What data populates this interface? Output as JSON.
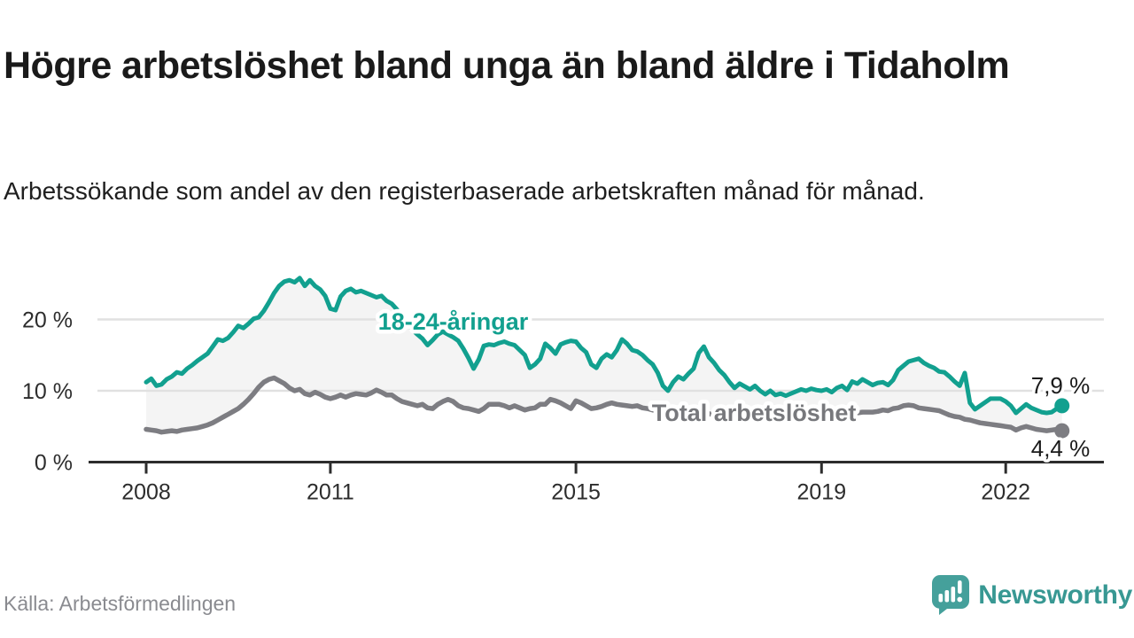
{
  "chart_data": {
    "type": "line",
    "title": "Högre arbetslöshet bland unga än bland äldre i Tidaholm",
    "subtitle": "Arbetssökande som andel av den registerbaserade arbetskraften månad för månad.",
    "unit": "%",
    "x_start": "2008-01",
    "x_end": "2022-12",
    "x_interval": "monthly",
    "ylim": [
      0,
      27
    ],
    "yticks": [
      0,
      10,
      20
    ],
    "ytick_labels": [
      "0 %",
      "10 %",
      "20 %"
    ],
    "xticks": [
      2008,
      2011,
      2015,
      2019,
      2022
    ],
    "grid": true,
    "band_fill": "#f4f4f4",
    "grid_color": "#e1e1e1",
    "axis_color": "#2d2d2d",
    "tick_label_color": "#2d2d2d",
    "end_label_color": "#1b1b1b",
    "series": [
      {
        "name": "18-24-åringar",
        "color": "#12a08f",
        "end_label": "7,9 %",
        "end_value": 7.9,
        "values": [
          11.2,
          11.7,
          10.7,
          10.9,
          11.6,
          12.0,
          12.6,
          12.4,
          13.1,
          13.6,
          14.2,
          14.7,
          15.2,
          16.2,
          17.2,
          17.0,
          17.4,
          18.2,
          19.1,
          18.8,
          19.4,
          20.1,
          20.3,
          21.2,
          22.4,
          23.7,
          24.7,
          25.3,
          25.5,
          25.2,
          25.8,
          24.7,
          25.5,
          24.7,
          24.2,
          23.3,
          21.5,
          21.3,
          23.2,
          24.0,
          24.3,
          23.8,
          24.0,
          23.7,
          23.4,
          23.1,
          23.3,
          22.6,
          22.2,
          21.4,
          20.4,
          19.6,
          18.6,
          17.9,
          17.3,
          16.4,
          17.1,
          17.9,
          18.3,
          17.9,
          17.5,
          17.0,
          15.9,
          14.6,
          13.1,
          14.4,
          16.3,
          16.5,
          16.4,
          16.7,
          16.9,
          16.6,
          16.4,
          15.7,
          15.0,
          13.2,
          13.7,
          14.5,
          16.6,
          16.0,
          15.2,
          16.5,
          16.8,
          17.0,
          16.9,
          16.0,
          15.4,
          13.7,
          13.2,
          14.5,
          15.1,
          14.7,
          15.7,
          17.2,
          16.6,
          15.7,
          15.5,
          15.0,
          14.3,
          13.7,
          12.5,
          10.7,
          10.0,
          11.2,
          12.0,
          11.6,
          12.4,
          13.1,
          15.3,
          16.2,
          14.7,
          13.9,
          12.9,
          12.2,
          11.2,
          10.4,
          11.0,
          10.6,
          10.2,
          10.7,
          10.0,
          9.5,
          10.0,
          9.4,
          9.6,
          9.3,
          9.6,
          9.9,
          10.2,
          10.0,
          10.3,
          10.1,
          10.0,
          10.2,
          9.8,
          10.4,
          10.7,
          10.1,
          11.3,
          11.0,
          11.6,
          11.2,
          10.8,
          11.1,
          11.2,
          10.8,
          11.5,
          12.9,
          13.5,
          14.1,
          14.3,
          14.5,
          13.9,
          13.5,
          13.2,
          12.7,
          12.6,
          12.0,
          11.3,
          10.7,
          12.5,
          8.3,
          7.4,
          7.9,
          8.4,
          8.9,
          8.9,
          8.9,
          8.5,
          7.9,
          6.9,
          7.5,
          8.1,
          7.6,
          7.3,
          7.0,
          6.9,
          7.0,
          7.5,
          7.9
        ]
      },
      {
        "name": "Total arbetslöshet",
        "color": "#7d7d82",
        "end_label": "4,4 %",
        "end_value": 4.4,
        "values": [
          4.6,
          4.5,
          4.4,
          4.2,
          4.3,
          4.4,
          4.3,
          4.5,
          4.6,
          4.7,
          4.8,
          5.0,
          5.2,
          5.5,
          5.9,
          6.3,
          6.7,
          7.1,
          7.5,
          8.1,
          8.8,
          9.6,
          10.5,
          11.2,
          11.6,
          11.8,
          11.4,
          11.0,
          10.4,
          10.0,
          10.2,
          9.6,
          9.4,
          9.8,
          9.5,
          9.1,
          8.9,
          9.1,
          9.4,
          9.1,
          9.4,
          9.6,
          9.5,
          9.4,
          9.7,
          10.1,
          9.8,
          9.4,
          9.4,
          8.9,
          8.5,
          8.3,
          8.1,
          7.9,
          8.1,
          7.6,
          7.5,
          8.1,
          8.5,
          8.8,
          8.5,
          7.9,
          7.6,
          7.5,
          7.3,
          7.1,
          7.5,
          8.1,
          8.1,
          8.1,
          7.9,
          7.6,
          7.9,
          7.6,
          7.3,
          7.5,
          7.6,
          8.1,
          8.1,
          8.8,
          8.6,
          8.3,
          7.9,
          7.5,
          8.6,
          8.3,
          7.9,
          7.5,
          7.6,
          7.8,
          8.1,
          8.3,
          8.1,
          8.0,
          7.9,
          7.8,
          7.9,
          7.6,
          7.5,
          7.3,
          7.1,
          6.9,
          7.0,
          7.2,
          7.4,
          7.3,
          7.1,
          7.0,
          7.0,
          6.9,
          6.8,
          6.6,
          6.5,
          6.4,
          6.5,
          6.6,
          6.7,
          6.6,
          6.5,
          6.4,
          6.3,
          6.2,
          6.1,
          6.2,
          6.3,
          6.2,
          6.3,
          6.4,
          6.5,
          6.4,
          6.5,
          6.6,
          6.6,
          6.7,
          6.8,
          6.7,
          6.8,
          6.9,
          7.0,
          6.9,
          7.0,
          7.0,
          7.0,
          7.1,
          7.3,
          7.2,
          7.5,
          7.6,
          7.9,
          8.0,
          7.9,
          7.6,
          7.5,
          7.4,
          7.3,
          7.2,
          6.9,
          6.6,
          6.4,
          6.3,
          6.0,
          5.9,
          5.7,
          5.5,
          5.4,
          5.3,
          5.2,
          5.1,
          5.0,
          4.9,
          4.5,
          4.8,
          5.0,
          4.8,
          4.6,
          4.5,
          4.4,
          4.5,
          4.6,
          4.4
        ]
      }
    ],
    "series_annotations": [
      {
        "text": "18-24-åringar",
        "year": 2013.0,
        "value": 19.7,
        "color": "#12a08f"
      },
      {
        "text": "Total arbetslöshet",
        "year": 2017.9,
        "value": 6.9,
        "color": "#77787c"
      }
    ],
    "legend_position": "inline-labels"
  },
  "footer": {
    "source": "Källa: Arbetsförmedlingen",
    "brand": "Newsworthy",
    "brand_color": "#389893",
    "logo_color": "#45a09b"
  }
}
